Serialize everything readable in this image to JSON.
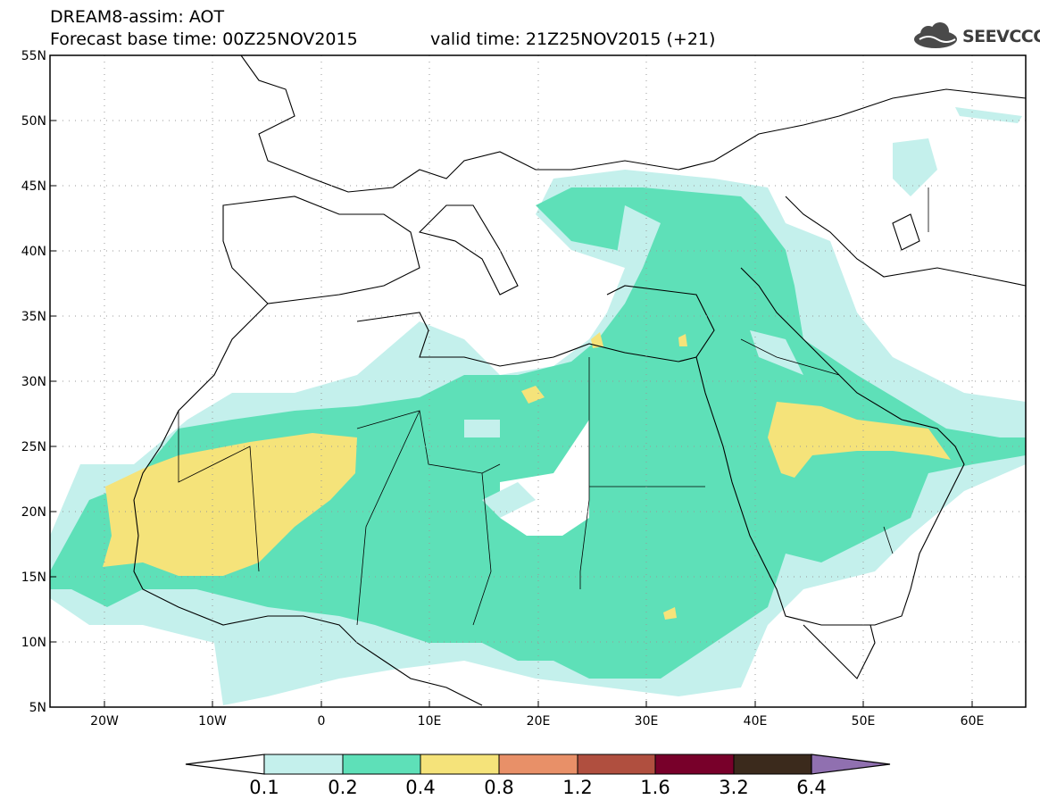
{
  "header": {
    "title": "DREAM8-assim: AOT",
    "base_time": "Forecast base time: 00Z25NOV2015",
    "valid_time": "valid time: 21Z25NOV2015 (+21)"
  },
  "logo": {
    "text": "SEEVCCC",
    "icon": "cloud-icon"
  },
  "map": {
    "lon_range": [
      -25,
      65
    ],
    "lat_range": [
      5,
      55
    ],
    "lat_ticks": [
      "5N",
      "10N",
      "15N",
      "20N",
      "25N",
      "30N",
      "35N",
      "40N",
      "45N",
      "50N",
      "55N"
    ],
    "lon_ticks": [
      "20W",
      "10W",
      "0",
      "10E",
      "20E",
      "30E",
      "40E",
      "50E",
      "60E"
    ],
    "grid": "dotted"
  },
  "legend": {
    "levels": [
      "0.1",
      "0.2",
      "0.4",
      "0.8",
      "1.2",
      "1.6",
      "3.2",
      "6.4"
    ],
    "colors": [
      "#c4f0ec",
      "#5ee0b8",
      "#f5e37a",
      "#e89068",
      "#b04f3f",
      "#78002a",
      "#3b2a1c",
      "#9070b0"
    ]
  }
}
